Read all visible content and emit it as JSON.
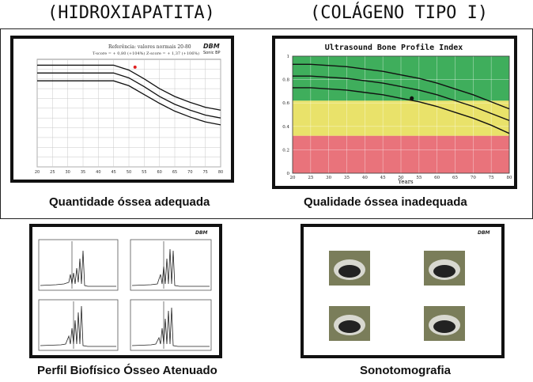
{
  "headings": {
    "left": "(HIDROXIAPATITA)",
    "right": "(COLÁGENO TIPO I)"
  },
  "captions": {
    "top_left": "Quantidade óssea adequada",
    "top_right": "Qualidade óssea inadequada",
    "bottom_left": "Perfil Biofísico Ósseo Atenuado",
    "bottom_right": "Sonotomografia"
  },
  "charts": {
    "top_right_title": "Ultrasound Bone Profile Index",
    "top_right_xlabel": "Years",
    "bands": {
      "green": "#3fae5c",
      "yellow": "#e9e26a",
      "red": "#e9737b"
    }
  },
  "chart_data": [
    {
      "type": "line",
      "title": "",
      "xlabel": "",
      "ylabel": "",
      "x": [
        20,
        25,
        30,
        35,
        40,
        45,
        50,
        55,
        60,
        65,
        70,
        75,
        80
      ],
      "series": [
        {
          "values": [
            2120,
            2120,
            2120,
            2120,
            2120,
            2120,
            2095,
            2050,
            2000,
            1960,
            1930,
            1905,
            1890
          ]
        },
        {
          "values": [
            2080,
            2080,
            2080,
            2080,
            2080,
            2080,
            2055,
            2010,
            1960,
            1920,
            1890,
            1865,
            1850
          ]
        },
        {
          "values": [
            2040,
            2040,
            2040,
            2040,
            2040,
            2040,
            2015,
            1970,
            1925,
            1885,
            1855,
            1830,
            1815
          ]
        }
      ],
      "points": [
        {
          "x": 52,
          "y": 2110
        }
      ],
      "ylim": [
        1600,
        2150
      ],
      "grid": true
    },
    {
      "type": "line",
      "title": "Ultrasound Bone Profile Index",
      "xlabel": "Years",
      "ylabel": "",
      "x": [
        20,
        25,
        30,
        35,
        40,
        45,
        50,
        55,
        60,
        65,
        70,
        75,
        80
      ],
      "yticks": [
        0,
        0.2,
        0.4,
        0.6,
        0.8,
        1
      ],
      "series": [
        {
          "values": [
            0.93,
            0.93,
            0.92,
            0.91,
            0.89,
            0.87,
            0.84,
            0.81,
            0.77,
            0.72,
            0.67,
            0.61,
            0.55
          ]
        },
        {
          "values": [
            0.83,
            0.83,
            0.82,
            0.81,
            0.79,
            0.77,
            0.74,
            0.71,
            0.67,
            0.62,
            0.57,
            0.51,
            0.45
          ]
        },
        {
          "values": [
            0.73,
            0.73,
            0.72,
            0.71,
            0.69,
            0.67,
            0.64,
            0.61,
            0.57,
            0.52,
            0.47,
            0.41,
            0.34
          ]
        }
      ],
      "points": [
        {
          "x": 53,
          "y": 0.64
        }
      ],
      "bands": [
        {
          "from": 0,
          "to": 0.32,
          "color": "#e9737b"
        },
        {
          "from": 0.32,
          "to": 0.62,
          "color": "#e9e26a"
        },
        {
          "from": 0.62,
          "to": 1,
          "color": "#3fae5c"
        }
      ],
      "ylim": [
        0,
        1
      ],
      "grid": true
    }
  ]
}
